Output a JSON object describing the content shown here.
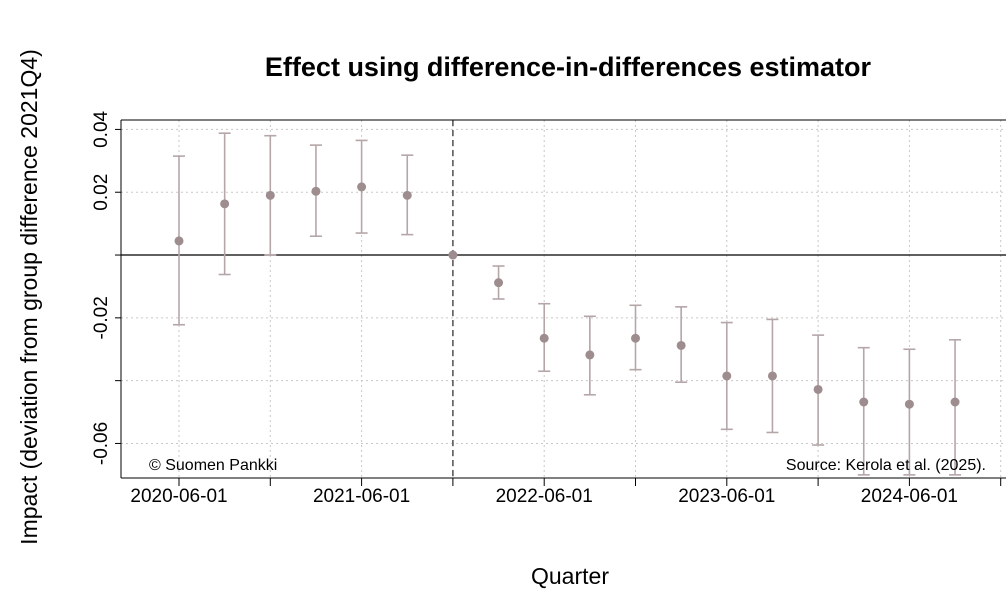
{
  "chart_data": {
    "type": "scatter",
    "title": "Effect using difference-in-differences estimator",
    "xlabel": "Quarter",
    "ylabel": "Impact (deviation from group difference 2021Q4)",
    "x_tick_labels": [
      "2020-06-01",
      "2021-06-01",
      "2022-06-01",
      "2023-06-01",
      "2024-06-01"
    ],
    "y_tick_labels": [
      "0.04",
      "0.02",
      "-0.02",
      "-0.06"
    ],
    "y_ticks_values": [
      0.04,
      0.02,
      -0.02,
      -0.06
    ],
    "ylim": [
      -0.071,
      0.043
    ],
    "reference_quarter": "2021Q4",
    "grid": true,
    "series": [
      {
        "x": [
          "2020Q2",
          "2020Q3",
          "2020Q4",
          "2021Q1",
          "2021Q2",
          "2021Q3",
          "2021Q4",
          "2022Q1",
          "2022Q2",
          "2022Q3",
          "2022Q4",
          "2023Q1",
          "2023Q2",
          "2023Q3",
          "2023Q4",
          "2024Q1",
          "2024Q2",
          "2024Q3"
        ],
        "y": [
          0.0045,
          0.0163,
          0.019,
          0.0203,
          0.0217,
          0.019,
          0.0,
          -0.0088,
          -0.0265,
          -0.0318,
          -0.0265,
          -0.0288,
          -0.0385,
          -0.0385,
          -0.0428,
          -0.0468,
          -0.0475,
          -0.0468
        ],
        "lower": [
          -0.0222,
          -0.0062,
          0.0,
          0.006,
          0.007,
          0.0065,
          0.0,
          -0.014,
          -0.037,
          -0.0445,
          -0.0365,
          -0.0405,
          -0.0555,
          -0.0565,
          -0.0605,
          -0.07,
          -0.07,
          -0.07
        ],
        "upper": [
          0.0315,
          0.0388,
          0.038,
          0.035,
          0.0365,
          0.0318,
          0.0,
          -0.0035,
          -0.0155,
          -0.0195,
          -0.016,
          -0.0165,
          -0.0215,
          -0.0205,
          -0.0255,
          -0.0295,
          -0.03,
          -0.027
        ]
      }
    ],
    "colors": {
      "points": "#9e8d8f",
      "whiskers": "#b5a6a8",
      "grid": "#c8c8c8"
    }
  },
  "notes": {
    "left": "© Suomen Pankki",
    "right": "Source: Kerola et al. (2025)."
  }
}
